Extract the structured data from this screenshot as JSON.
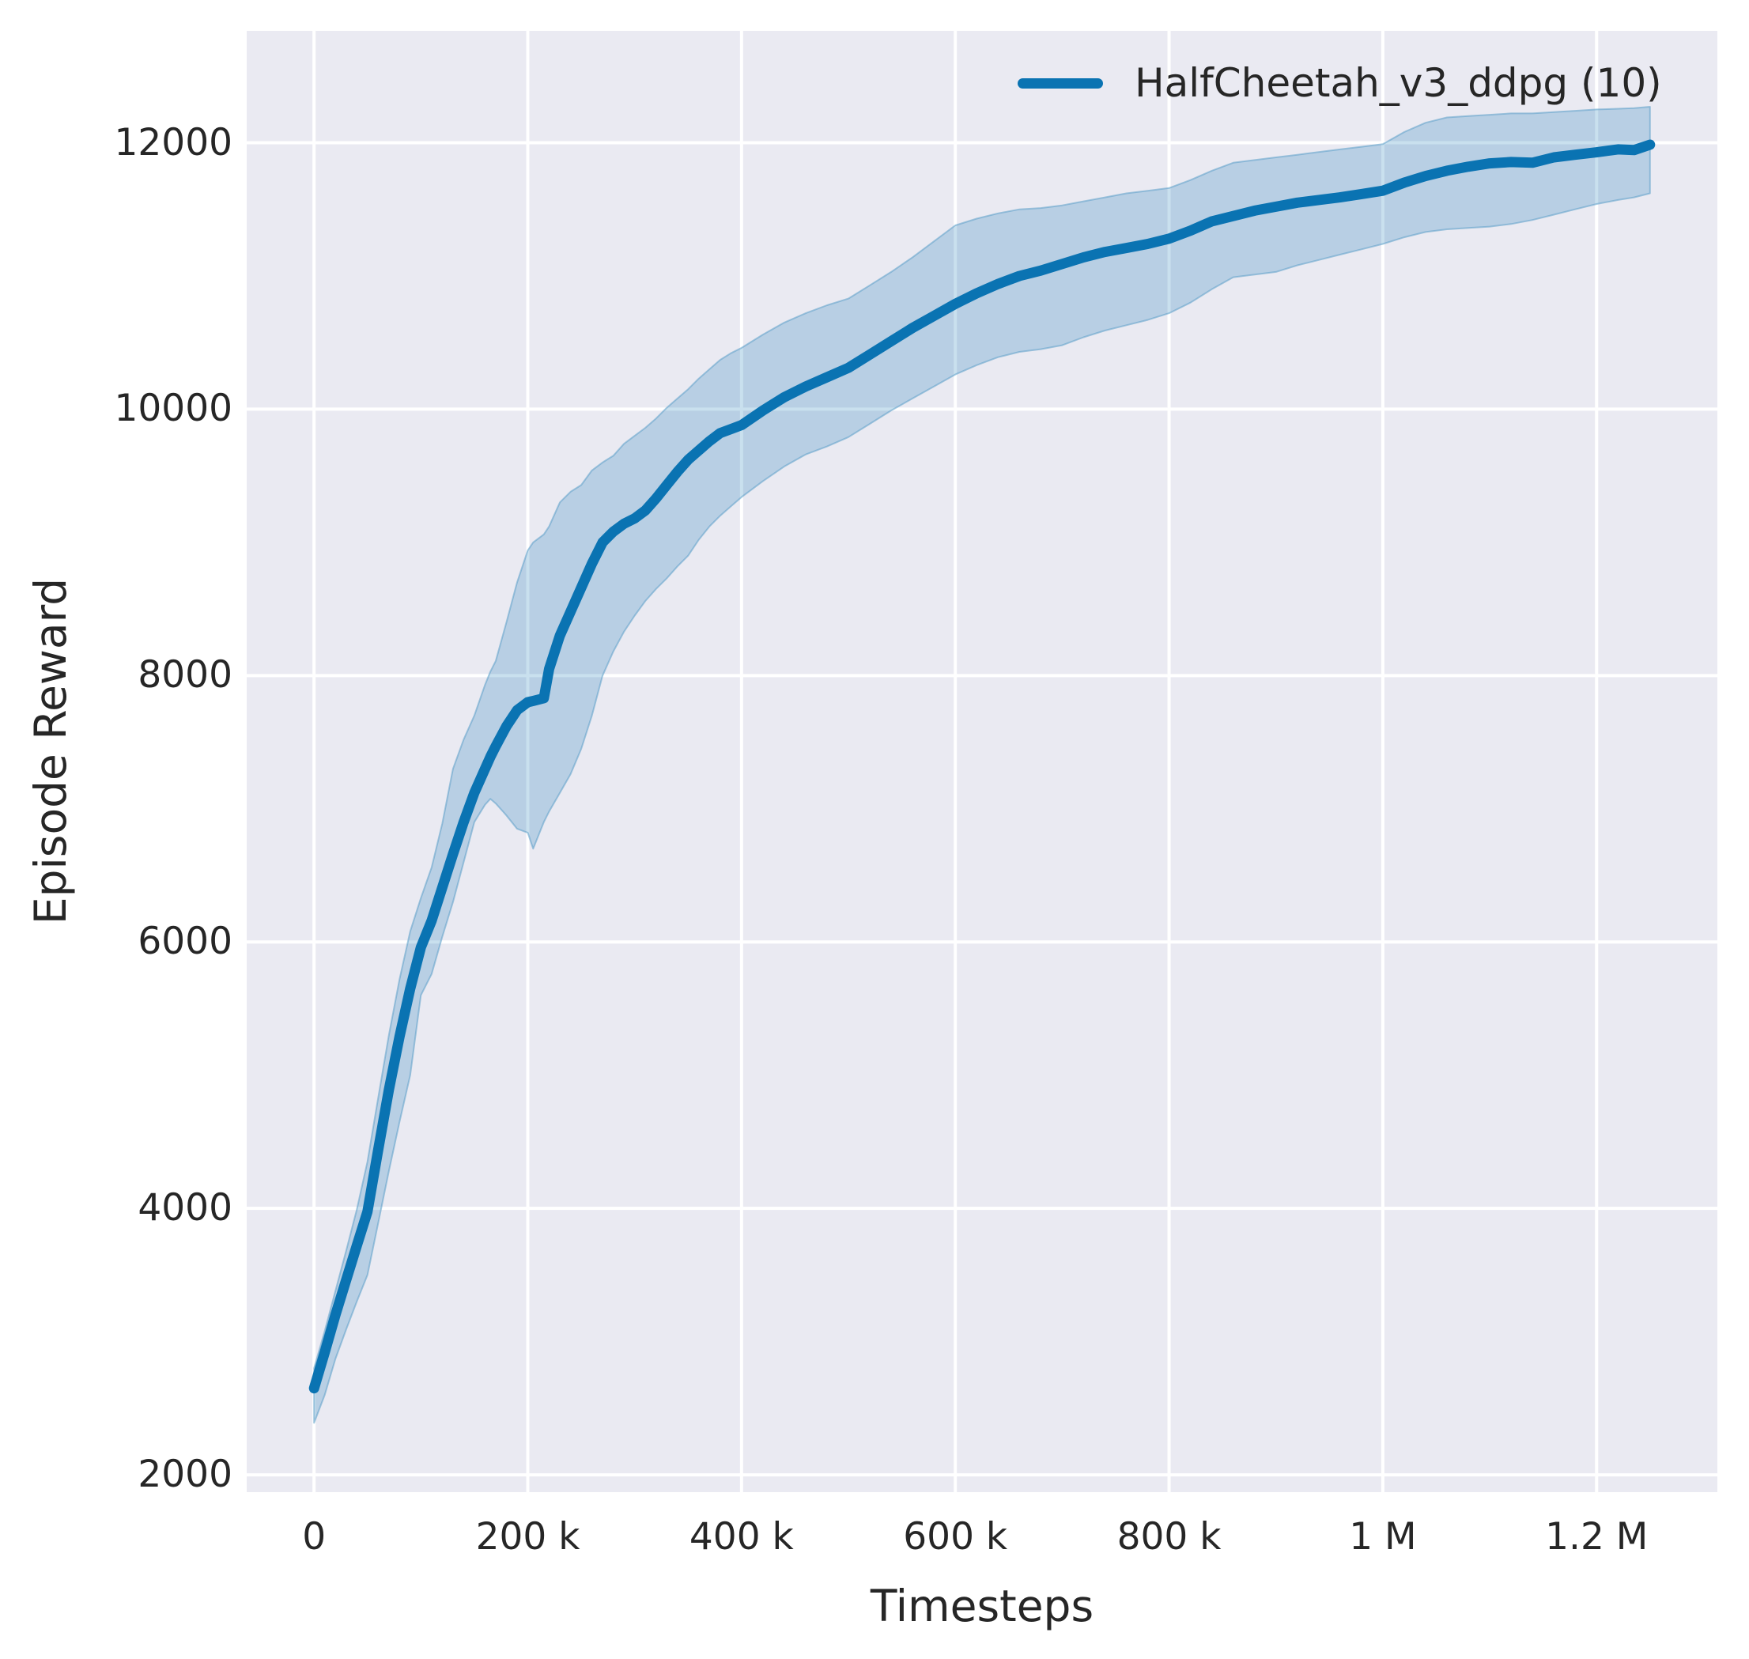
{
  "colors": {
    "line": "#0a73b2",
    "band_fill": "#0a73b2",
    "band_fill_opacity": 0.22,
    "band_edge": "#5b9ec9",
    "band_edge_opacity": 0.55,
    "plot_background": "#eaeaf2",
    "gridline": "#ffffff",
    "text": "#262626",
    "figure_background": "#ffffff"
  },
  "chart_data": {
    "type": "line",
    "title": "",
    "xlabel": "Timesteps",
    "ylabel": "Episode Reward",
    "grid": true,
    "legend_position": "upper right",
    "xlim": [
      -63000,
      1313000
    ],
    "ylim": [
      1870,
      12840
    ],
    "x_ticks": [
      {
        "value": 0,
        "label": "0"
      },
      {
        "value": 200000,
        "label": "200 k"
      },
      {
        "value": 400000,
        "label": "400 k"
      },
      {
        "value": 600000,
        "label": "600 k"
      },
      {
        "value": 800000,
        "label": "800 k"
      },
      {
        "value": 1000000,
        "label": "1 M"
      },
      {
        "value": 1200000,
        "label": "1.2 M"
      }
    ],
    "y_ticks": [
      {
        "value": 2000,
        "label": "2000"
      },
      {
        "value": 4000,
        "label": "4000"
      },
      {
        "value": 6000,
        "label": "6000"
      },
      {
        "value": 8000,
        "label": "8000"
      },
      {
        "value": 10000,
        "label": "10000"
      },
      {
        "value": 12000,
        "label": "12000"
      }
    ],
    "series": [
      {
        "name": "HalfCheetah_v3_ddpg (10)",
        "color": "#0a73b2",
        "x": [
          0,
          10000,
          20000,
          30000,
          40000,
          50000,
          60000,
          70000,
          80000,
          90000,
          100000,
          110000,
          120000,
          130000,
          140000,
          150000,
          160000,
          165000,
          170000,
          180000,
          190000,
          200000,
          205000,
          215000,
          220000,
          230000,
          240000,
          250000,
          260000,
          270000,
          280000,
          290000,
          300000,
          310000,
          320000,
          330000,
          340000,
          350000,
          360000,
          370000,
          380000,
          390000,
          400000,
          420000,
          440000,
          460000,
          480000,
          500000,
          520000,
          540000,
          560000,
          580000,
          600000,
          620000,
          640000,
          660000,
          680000,
          700000,
          720000,
          740000,
          760000,
          780000,
          800000,
          820000,
          840000,
          860000,
          880000,
          900000,
          920000,
          940000,
          960000,
          980000,
          1000000,
          1020000,
          1040000,
          1060000,
          1080000,
          1100000,
          1120000,
          1140000,
          1160000,
          1180000,
          1200000,
          1220000,
          1235000,
          1250000
        ],
        "mean": [
          2650,
          2920,
          3200,
          3460,
          3720,
          3975,
          4440,
          4890,
          5290,
          5650,
          5960,
          6160,
          6410,
          6660,
          6900,
          7120,
          7300,
          7390,
          7470,
          7620,
          7740,
          7800,
          7810,
          7830,
          8050,
          8300,
          8480,
          8660,
          8840,
          9000,
          9080,
          9140,
          9180,
          9240,
          9330,
          9430,
          9530,
          9620,
          9690,
          9760,
          9820,
          9850,
          9880,
          9990,
          10090,
          10170,
          10240,
          10310,
          10410,
          10510,
          10610,
          10700,
          10790,
          10870,
          10940,
          11000,
          11040,
          11090,
          11140,
          11180,
          11210,
          11240,
          11280,
          11340,
          11410,
          11450,
          11490,
          11520,
          11550,
          11570,
          11590,
          11615,
          11640,
          11700,
          11750,
          11790,
          11820,
          11845,
          11855,
          11850,
          11890,
          11910,
          11928,
          11950,
          11945,
          11985
        ],
        "band_low": [
          2390,
          2600,
          2870,
          3090,
          3300,
          3500,
          3890,
          4280,
          4650,
          5000,
          5600,
          5760,
          6040,
          6300,
          6600,
          6900,
          7030,
          7075,
          7040,
          6950,
          6850,
          6820,
          6700,
          6900,
          6980,
          7120,
          7260,
          7450,
          7700,
          8000,
          8180,
          8330,
          8450,
          8560,
          8650,
          8730,
          8820,
          8900,
          9020,
          9120,
          9200,
          9270,
          9340,
          9460,
          9570,
          9660,
          9720,
          9790,
          9890,
          9990,
          10080,
          10170,
          10260,
          10330,
          10390,
          10430,
          10450,
          10480,
          10540,
          10590,
          10630,
          10670,
          10720,
          10800,
          10900,
          10990,
          11010,
          11030,
          11080,
          11120,
          11160,
          11200,
          11240,
          11290,
          11330,
          11350,
          11360,
          11370,
          11390,
          11420,
          11460,
          11500,
          11540,
          11570,
          11590,
          11620
        ],
        "band_high": [
          2800,
          3080,
          3380,
          3680,
          3990,
          4350,
          4830,
          5300,
          5720,
          6080,
          6330,
          6560,
          6890,
          7300,
          7520,
          7700,
          7930,
          8030,
          8110,
          8400,
          8700,
          8940,
          9000,
          9060,
          9120,
          9300,
          9380,
          9430,
          9540,
          9600,
          9650,
          9740,
          9800,
          9860,
          9930,
          10010,
          10080,
          10150,
          10230,
          10300,
          10370,
          10420,
          10460,
          10560,
          10650,
          10720,
          10780,
          10830,
          10930,
          11030,
          11140,
          11260,
          11380,
          11430,
          11470,
          11500,
          11510,
          11530,
          11560,
          11590,
          11620,
          11640,
          11660,
          11720,
          11790,
          11850,
          11870,
          11890,
          11910,
          11930,
          11950,
          11970,
          11990,
          12080,
          12150,
          12190,
          12200,
          12210,
          12220,
          12220,
          12230,
          12240,
          12250,
          12255,
          12260,
          12270
        ]
      }
    ]
  }
}
